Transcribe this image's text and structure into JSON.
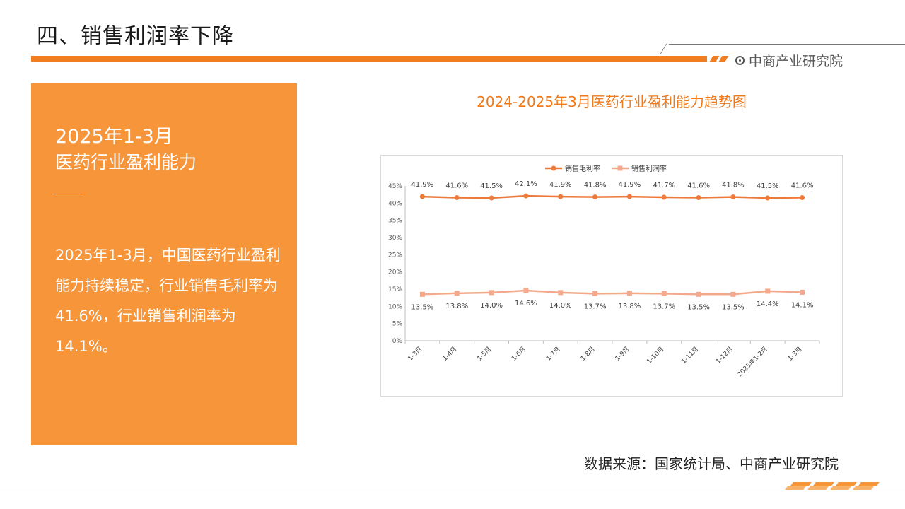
{
  "header": {
    "title": "四、销售利润率下降",
    "brand": "中商产业研究院"
  },
  "panel": {
    "heading_line1": "2025年1-3月",
    "heading_line2": "医药行业盈利能力",
    "body": "2025年1-3月，中国医药行业盈利能力持续稳定，行业销售毛利率为41.6%，行业销售利润率为14.1%。"
  },
  "source": "数据来源：国家统计局、中商产业研究院",
  "colors": {
    "accent": "#f07d1f",
    "panel": "#f7953b",
    "series_gross": "#ee7a3a",
    "series_profit": "#f4a98c"
  },
  "chart_data": {
    "type": "line",
    "title": "2024-2025年3月医药行业盈利能力趋势图",
    "categories": [
      "1-3月",
      "1-4月",
      "1-5月",
      "1-6月",
      "1-7月",
      "1-8月",
      "1-9月",
      "1-10月",
      "1-11月",
      "1-12月",
      "2025年1-2月",
      "1-3月"
    ],
    "series": [
      {
        "name": "销售毛利率",
        "values": [
          41.9,
          41.6,
          41.5,
          42.1,
          41.9,
          41.8,
          41.9,
          41.7,
          41.6,
          41.8,
          41.5,
          41.6
        ],
        "labels": [
          "41.9%",
          "41.6%",
          "41.5%",
          "42.1%",
          "41.9%",
          "41.8%",
          "41.9%",
          "41.7%",
          "41.6%",
          "41.8%",
          "41.5%",
          "41.6%"
        ]
      },
      {
        "name": "销售利润率",
        "values": [
          13.5,
          13.8,
          14.0,
          14.6,
          14.0,
          13.7,
          13.8,
          13.7,
          13.5,
          13.5,
          14.4,
          14.1
        ],
        "labels": [
          "13.5%",
          "13.8%",
          "14.0%",
          "14.6%",
          "14.0%",
          "13.7%",
          "13.8%",
          "13.7%",
          "13.5%",
          "13.5%",
          "14.4%",
          "14.1%"
        ]
      }
    ],
    "yticks": [
      "0%",
      "5%",
      "10%",
      "15%",
      "20%",
      "25%",
      "30%",
      "35%",
      "40%",
      "45%"
    ],
    "ylim": [
      0,
      45
    ],
    "legend": "top",
    "grid": false
  }
}
